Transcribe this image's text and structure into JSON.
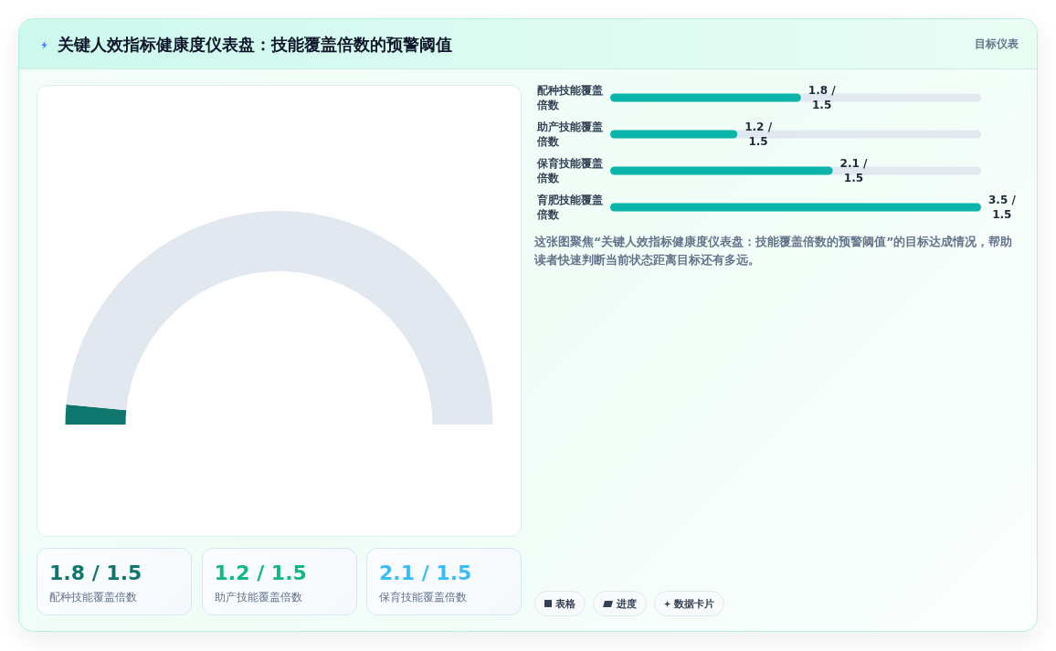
{
  "chart_data": [
    {
      "type": "donut",
      "title": "关键人效指标健康度仪表盘：技能覆盖倍数的预警阈值",
      "annotations": [
        "目标仪表"
      ],
      "categories": [
        null,
        null
      ],
      "values": [
        3,
        97
      ],
      "colors": [
        "#0f766e",
        "#e2e8f0"
      ]
    },
    {
      "type": "bar",
      "orientation": "horizontal",
      "categories": [
        "配种技能覆盖倍数",
        "助产技能覆盖倍数",
        "保育技能覆盖倍数",
        "育肥技能覆盖倍数"
      ],
      "values": [
        1.8,
        1.2,
        2.1,
        3.5
      ],
      "color": "#0bb5a9",
      "value_labels": [
        "1.8 / 1.5",
        "1.2 / 1.5",
        "2.1 / 1.5",
        "3.5 / 1.5"
      ],
      "tick_labels": "y",
      "annotations": [
        "这张图聚焦“关键人效指标健康度仪表盘：技能覆盖倍数的预警阈值”的目标达成情况，帮助读者快速判断当前状态距离目标还有多远。",
        "表格",
        "进度",
        "数据卡片"
      ]
    },
    {
      "type": "other",
      "categories": [
        "配种技能覆盖倍数",
        "助产技能覆盖倍数",
        "保育技能覆盖倍数"
      ],
      "value_labels": [
        "1.8 / 1.5",
        "1.2 / 1.5",
        "2.1 / 1.5"
      ]
    }
  ]
}
